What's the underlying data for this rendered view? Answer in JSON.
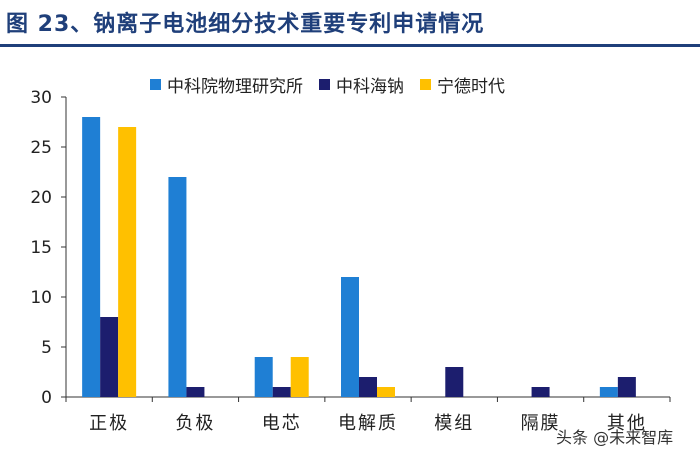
{
  "title": "图 23、钠离子电池细分技术重要专利申请情况",
  "colors": {
    "title": "#1f3f7a",
    "s0": "#1f7fd4",
    "s1": "#1c1e6e",
    "s2": "#ffc000",
    "axis": "#333333"
  },
  "watermark": "头条 @未来智库",
  "chart_data": {
    "type": "bar",
    "categories": [
      "正极",
      "负极",
      "电芯",
      "电解质",
      "模组",
      "隔膜",
      "其他"
    ],
    "series": [
      {
        "name": "中科院物理研究所",
        "values": [
          28,
          22,
          4,
          12,
          0,
          0,
          1
        ]
      },
      {
        "name": "中科海钠",
        "values": [
          8,
          1,
          1,
          2,
          3,
          1,
          2
        ]
      },
      {
        "name": "宁德时代",
        "values": [
          27,
          0,
          4,
          1,
          0,
          0,
          0
        ]
      }
    ],
    "ylim": [
      0,
      30
    ],
    "yticks": [
      0,
      5,
      10,
      15,
      20,
      25,
      30
    ],
    "legend": "top",
    "grid": false
  }
}
